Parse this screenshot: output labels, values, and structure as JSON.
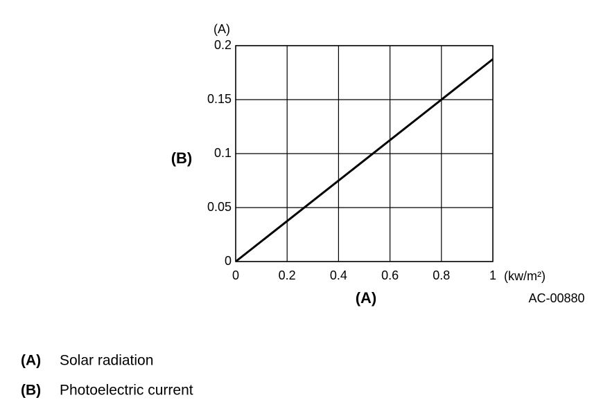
{
  "chart_data": {
    "type": "line",
    "y_unit": "(A)",
    "ylabel": "(B)",
    "xlabel": "(A)",
    "x_unit": "(kw/m²)",
    "code": "AC-00880",
    "x": [
      0,
      1
    ],
    "series": [
      {
        "color": "#000000",
        "values": [
          0,
          0.1875
        ]
      }
    ],
    "xlim": [
      0,
      1
    ],
    "xticks": [
      0,
      0.2,
      0.4,
      0.6,
      0.8,
      1
    ],
    "ylim": [
      0,
      0.2
    ],
    "yticks": [
      0,
      0.05,
      0.1,
      0.15,
      0.2
    ],
    "grid": true
  },
  "legend_notes": [
    {
      "key": "(A)",
      "text": "Solar radiation"
    },
    {
      "key": "(B)",
      "text": "Photoelectric current"
    }
  ]
}
